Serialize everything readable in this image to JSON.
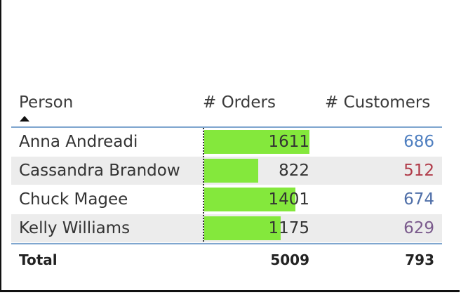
{
  "table": {
    "columns": [
      "Person",
      "# Orders",
      "# Customers"
    ],
    "sort_column": 0,
    "bar_color": "#84e83c",
    "rows": [
      {
        "person": "Anna Andreadi",
        "orders": 1611,
        "customers": 686,
        "customers_color": "#4f7fc0"
      },
      {
        "person": "Cassandra Brandow",
        "orders": 822,
        "customers": 512,
        "customers_color": "#b03a48"
      },
      {
        "person": "Chuck Magee",
        "orders": 1401,
        "customers": 674,
        "customers_color": "#4f6fa8"
      },
      {
        "person": "Kelly Williams",
        "orders": 1175,
        "customers": 629,
        "customers_color": "#7a5a8c"
      }
    ],
    "total": {
      "label": "Total",
      "orders": 5009,
      "customers": 793
    }
  }
}
